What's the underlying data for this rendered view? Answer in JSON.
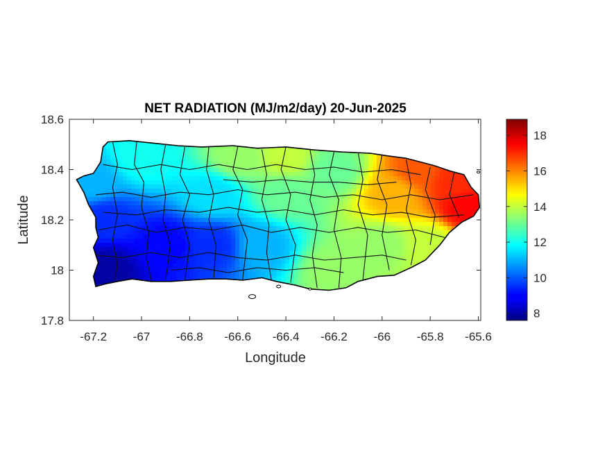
{
  "chart_data": {
    "type": "heatmap",
    "title": "NET RADIATION (MJ/m2/day) 20-Jun-2025",
    "xlabel": "Longitude",
    "ylabel": "Latitude",
    "xlim": [
      -67.3,
      -65.59
    ],
    "ylim": [
      17.8,
      18.6
    ],
    "x_ticks": [
      -67.2,
      -67,
      -66.8,
      -66.6,
      -66.4,
      -66.2,
      -66,
      -65.8,
      -65.6
    ],
    "x_tick_labels": [
      "-67.2",
      "-67",
      "-66.8",
      "-66.6",
      "-66.4",
      "-66.2",
      "-66",
      "-65.8",
      "-65.6"
    ],
    "y_ticks": [
      17.8,
      18,
      18.2,
      18.4,
      18.6
    ],
    "y_tick_labels": [
      "17.8",
      "18",
      "18.2",
      "18.4",
      "18.6"
    ],
    "colorbar": {
      "colormap": "jet",
      "range": [
        7.6,
        18.9
      ],
      "ticks": [
        8,
        10,
        12,
        14,
        16,
        18
      ],
      "tick_labels": [
        "8",
        "10",
        "12",
        "14",
        "16",
        "18"
      ]
    },
    "grid": false,
    "field_samples": [
      {
        "lon": -67.15,
        "lat": 18.0,
        "value": 8.0
      },
      {
        "lon": -67.15,
        "lat": 18.2,
        "value": 9.5
      },
      {
        "lon": -67.2,
        "lat": 18.35,
        "value": 11.0
      },
      {
        "lon": -67.0,
        "lat": 18.45,
        "value": 12.0
      },
      {
        "lon": -66.9,
        "lat": 18.1,
        "value": 9.0
      },
      {
        "lon": -66.7,
        "lat": 18.1,
        "value": 9.5
      },
      {
        "lon": -66.7,
        "lat": 18.3,
        "value": 11.5
      },
      {
        "lon": -66.6,
        "lat": 18.45,
        "value": 13.5
      },
      {
        "lon": -66.5,
        "lat": 18.1,
        "value": 11.0
      },
      {
        "lon": -66.4,
        "lat": 18.3,
        "value": 13.0
      },
      {
        "lon": -66.4,
        "lat": 18.45,
        "value": 14.0
      },
      {
        "lon": -66.2,
        "lat": 18.0,
        "value": 13.5
      },
      {
        "lon": -66.2,
        "lat": 18.4,
        "value": 13.0
      },
      {
        "lon": -66.0,
        "lat": 18.1,
        "value": 13.5
      },
      {
        "lon": -65.95,
        "lat": 18.3,
        "value": 15.5
      },
      {
        "lon": -65.85,
        "lat": 18.4,
        "value": 16.5
      },
      {
        "lon": -65.7,
        "lat": 18.35,
        "value": 17.0
      },
      {
        "lon": -65.65,
        "lat": 18.25,
        "value": 17.5
      },
      {
        "lon": -65.8,
        "lat": 18.1,
        "value": 14.0
      }
    ]
  }
}
